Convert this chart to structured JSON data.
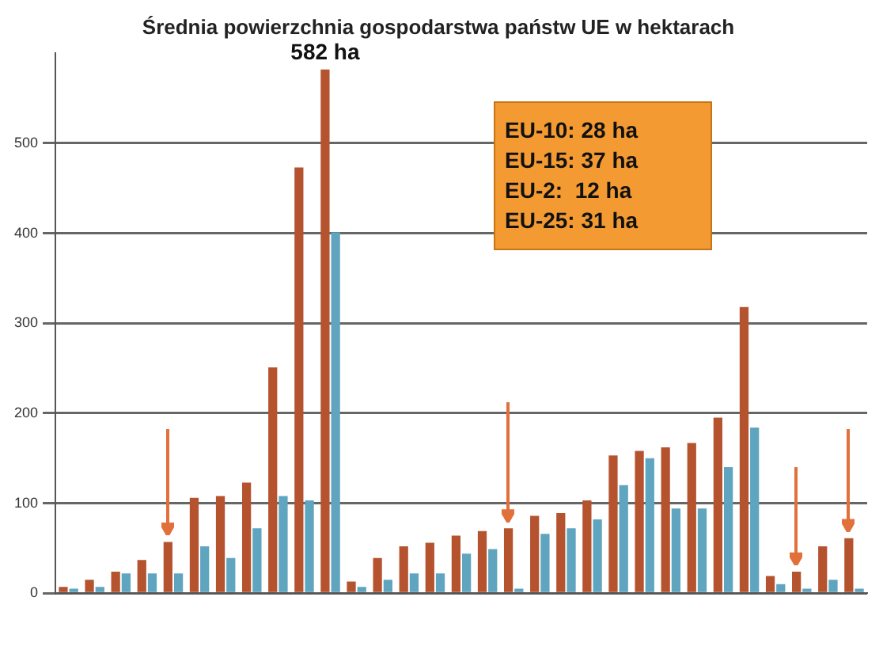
{
  "chart_data": {
    "type": "bar",
    "title": "Średnia powierzchnia gospodarstwa państw UE w hektarach",
    "categories": [
      null,
      null,
      null,
      null,
      null,
      null,
      null,
      null,
      null,
      null,
      null,
      null,
      null,
      null,
      null,
      null,
      null,
      null,
      null,
      null,
      null,
      null,
      null,
      null,
      null,
      null,
      null,
      null,
      null,
      null,
      null
    ],
    "ylim": [
      0,
      600
    ],
    "yticks": [
      0,
      100,
      200,
      300,
      400,
      500
    ],
    "grid": "y",
    "series": [
      {
        "color": "#b5532f",
        "values": [
          7,
          15,
          24,
          37,
          57,
          106,
          108,
          123,
          251,
          473,
          582,
          13,
          39,
          52,
          56,
          64,
          69,
          72,
          86,
          89,
          103,
          153,
          158,
          162,
          167,
          195,
          318,
          19,
          24,
          52,
          61
        ],
        "value_labels": [
          null,
          null,
          null,
          null,
          null,
          null,
          null,
          null,
          null,
          null,
          "582 ha",
          null,
          null,
          null,
          null,
          null,
          null,
          null,
          null,
          null,
          null,
          null,
          null,
          null,
          null,
          null,
          null,
          null,
          null,
          null,
          null
        ]
      },
      {
        "color": "#5fa5bf",
        "values": [
          5,
          7,
          22,
          22,
          22,
          52,
          39,
          72,
          108,
          103,
          401,
          7,
          15,
          22,
          22,
          44,
          49,
          5,
          66,
          72,
          82,
          120,
          150,
          94,
          94,
          140,
          184,
          10,
          5,
          15,
          5
        ]
      }
    ],
    "annotations": [
      "EU-10: 28 ha",
      "EU-15: 37 ha",
      "EU-2:  12 ha",
      "EU-25: 31 ha"
    ]
  }
}
